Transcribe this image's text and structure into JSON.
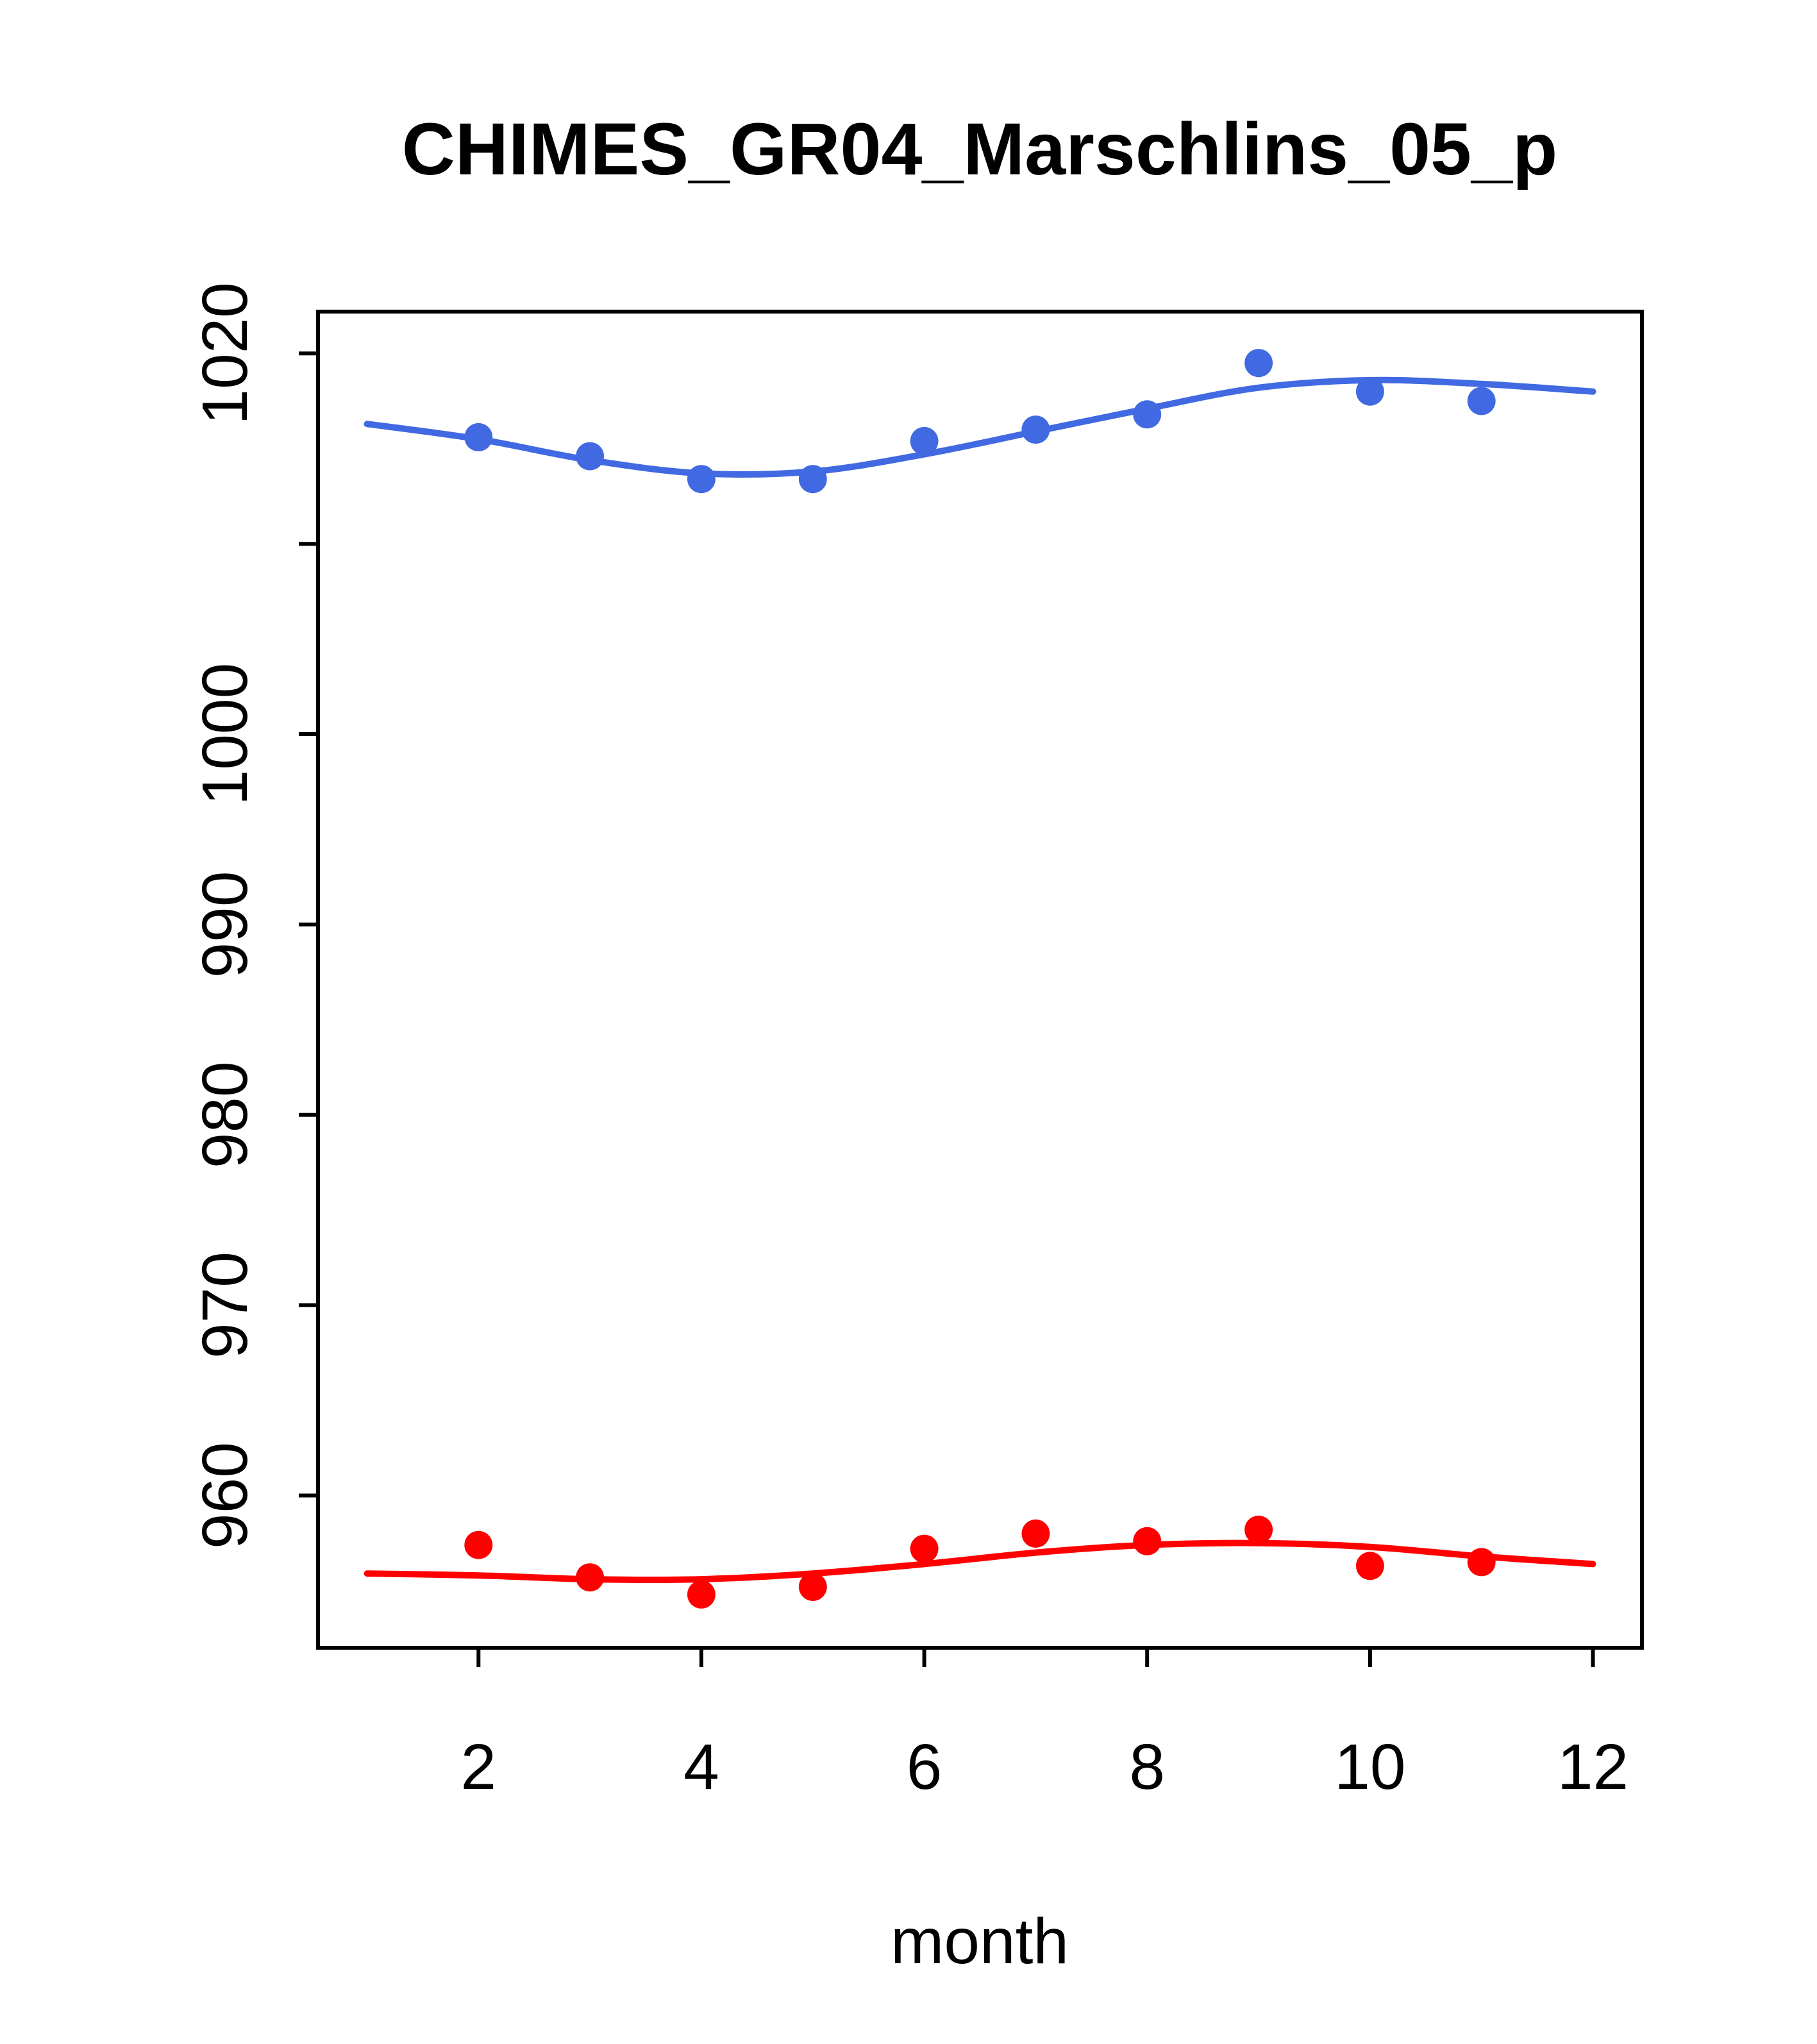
{
  "title": "CHIMES_GR04_Marschlins_05_p",
  "chart_data": {
    "type": "scatter",
    "title": "CHIMES_GR04_Marschlins_05_p",
    "xlabel": "month",
    "ylabel": "",
    "grid": false,
    "legend": "none",
    "xlim": [
      0.56,
      12.44
    ],
    "ylim": [
      952.0,
      1022.2
    ],
    "x_ticks": [
      2,
      4,
      6,
      8,
      10,
      12
    ],
    "x_tick_labels": [
      "2",
      "4",
      "6",
      "8",
      "10",
      "12"
    ],
    "y_ticks": [
      960,
      970,
      980,
      990,
      1000,
      1010,
      1020
    ],
    "y_tick_labels": [
      "960",
      "970",
      "980",
      "990",
      "1000",
      "",
      "1020"
    ],
    "colors": {
      "upper_series": "#4169E1",
      "lower_series": "#FF0000",
      "axis": "#000000",
      "background": "#FFFFFF"
    },
    "series": [
      {
        "name": "upper-blue-smooth-line",
        "type": "line",
        "color": "#4169E1",
        "x": [
          1,
          2,
          3,
          4,
          5,
          6,
          7,
          8,
          9,
          10,
          11,
          12
        ],
        "y": [
          1016.3,
          1015.5,
          1014.4,
          1013.7,
          1013.8,
          1014.7,
          1015.9,
          1017.1,
          1018.2,
          1018.6,
          1018.4,
          1018.0
        ]
      },
      {
        "name": "upper-blue-points",
        "type": "points",
        "color": "#4169E1",
        "x": [
          2,
          3,
          4,
          5,
          6,
          7,
          8,
          9,
          10,
          11
        ],
        "y": [
          1015.6,
          1014.6,
          1013.4,
          1013.4,
          1015.4,
          1016.0,
          1016.8,
          1019.5,
          1018.0,
          1017.5
        ]
      },
      {
        "name": "lower-red-smooth-line",
        "type": "line",
        "color": "#FF0000",
        "x": [
          1,
          2,
          3,
          4,
          5,
          6,
          7,
          8,
          9,
          10,
          11,
          12
        ],
        "y": [
          955.9,
          955.8,
          955.6,
          955.6,
          955.9,
          956.4,
          957.0,
          957.4,
          957.5,
          957.3,
          956.8,
          956.4
        ]
      },
      {
        "name": "lower-red-points",
        "type": "points",
        "color": "#FF0000",
        "x": [
          2,
          3,
          4,
          5,
          6,
          7,
          8,
          9,
          10,
          11
        ],
        "y": [
          957.4,
          955.7,
          954.8,
          955.2,
          957.2,
          958.0,
          957.6,
          958.2,
          956.3,
          956.5
        ]
      }
    ]
  }
}
